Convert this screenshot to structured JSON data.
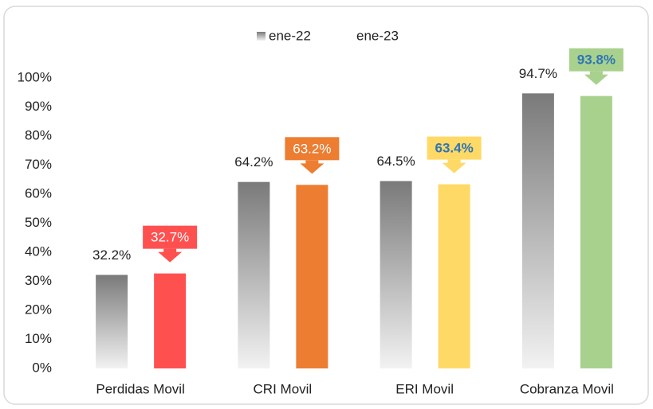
{
  "chart_data": {
    "type": "bar",
    "categories": [
      "Perdidas Movil",
      "CRI Movil",
      "ERI Movil",
      "Cobranza Movil"
    ],
    "series": [
      {
        "name": "ene-22",
        "color": "#808080",
        "values": [
          32.2,
          64.2,
          64.5,
          94.7
        ],
        "value_labels": [
          "32.2%",
          "64.2%",
          "64.5%",
          "94.7%"
        ]
      },
      {
        "name": "ene-23",
        "colors": [
          "#ff5050",
          "#ed7d31",
          "#ffd966",
          "#a9d18e"
        ],
        "values": [
          32.7,
          63.2,
          63.4,
          93.8
        ],
        "value_labels": [
          "32.7%",
          "63.2%",
          "63.4%",
          "93.8%"
        ],
        "label_text_colors": [
          "#ffffff",
          "#ffffff",
          "#2e75b6",
          "#2e75b6"
        ]
      }
    ],
    "ylim": [
      0,
      100
    ],
    "yticks": [
      {
        "value": 0,
        "label": "0%"
      },
      {
        "value": 10,
        "label": "10%"
      },
      {
        "value": 20,
        "label": "20%"
      },
      {
        "value": 30,
        "label": "30%"
      },
      {
        "value": 40,
        "label": "40%"
      },
      {
        "value": 50,
        "label": "50%"
      },
      {
        "value": 60,
        "label": "60%"
      },
      {
        "value": 70,
        "label": "70%"
      },
      {
        "value": 80,
        "label": "80%"
      },
      {
        "value": 90,
        "label": "90%"
      },
      {
        "value": 100,
        "label": "100%"
      }
    ]
  }
}
